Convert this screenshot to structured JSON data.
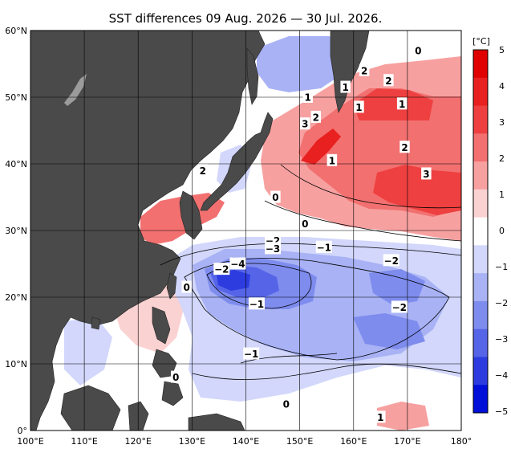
{
  "title": "SST differences 09 Aug. 2026 — 30 Jul. 2026.",
  "x_ticks": [
    "100°E",
    "110°E",
    "120°E",
    "130°E",
    "140°E",
    "150°E",
    "160°E",
    "170°E",
    "180°"
  ],
  "y_ticks": [
    "60°N",
    "50°N",
    "40°N",
    "30°N",
    "20°N",
    "10°N",
    "0°"
  ],
  "colorbar": {
    "unit": "[°C]",
    "ticks": [
      "5",
      "4",
      "3",
      "2",
      "1",
      "0",
      "−1",
      "−2",
      "−3",
      "−4",
      "−5"
    ]
  },
  "contour_labels": [
    {
      "text": "0",
      "lon": 172,
      "lat": 57
    },
    {
      "text": "2",
      "lon": 162,
      "lat": 54
    },
    {
      "text": "2",
      "lon": 166.5,
      "lat": 52.5
    },
    {
      "text": "1",
      "lon": 158.5,
      "lat": 51.5
    },
    {
      "text": "1",
      "lon": 151.5,
      "lat": 50
    },
    {
      "text": "1",
      "lon": 161,
      "lat": 48.5
    },
    {
      "text": "1",
      "lon": 169,
      "lat": 49
    },
    {
      "text": "2",
      "lon": 153,
      "lat": 47
    },
    {
      "text": "3",
      "lon": 151,
      "lat": 46
    },
    {
      "text": "2",
      "lon": 169.5,
      "lat": 42.5
    },
    {
      "text": "1",
      "lon": 156,
      "lat": 40.5
    },
    {
      "text": "3",
      "lon": 173.5,
      "lat": 38.5
    },
    {
      "text": "2",
      "lon": 132,
      "lat": 39
    },
    {
      "text": "0",
      "lon": 145.5,
      "lat": 35
    },
    {
      "text": "0",
      "lon": 151,
      "lat": 31
    },
    {
      "text": "−2",
      "lon": 145,
      "lat": 28.5
    },
    {
      "text": "−3",
      "lon": 145,
      "lat": 27.3
    },
    {
      "text": "−1",
      "lon": 154.5,
      "lat": 27.5
    },
    {
      "text": "−4",
      "lon": 138.5,
      "lat": 25
    },
    {
      "text": "−2",
      "lon": 135.5,
      "lat": 24.2
    },
    {
      "text": "−2",
      "lon": 167,
      "lat": 25.5
    },
    {
      "text": "0",
      "lon": 129,
      "lat": 21.5
    },
    {
      "text": "−1",
      "lon": 142,
      "lat": 19
    },
    {
      "text": "−2",
      "lon": 168.5,
      "lat": 18.5
    },
    {
      "text": "−1",
      "lon": 141,
      "lat": 11.5
    },
    {
      "text": "0",
      "lon": 127,
      "lat": 8
    },
    {
      "text": "0",
      "lon": 147.5,
      "lat": 4
    },
    {
      "text": "1",
      "lon": 165,
      "lat": 2
    }
  ],
  "colors": {
    "land": "#4a4a4a",
    "lake": "#9b9b9b",
    "grid": "#000000",
    "scale": [
      "#e00000",
      "#e82020",
      "#ee4040",
      "#f27070",
      "#f7a0a0",
      "#fbd2d2",
      "#ffffff",
      "#d2d7fb",
      "#a8b2f5",
      "#7e8cee",
      "#5664e8",
      "#2c3cdf",
      "#0010d8"
    ]
  }
}
